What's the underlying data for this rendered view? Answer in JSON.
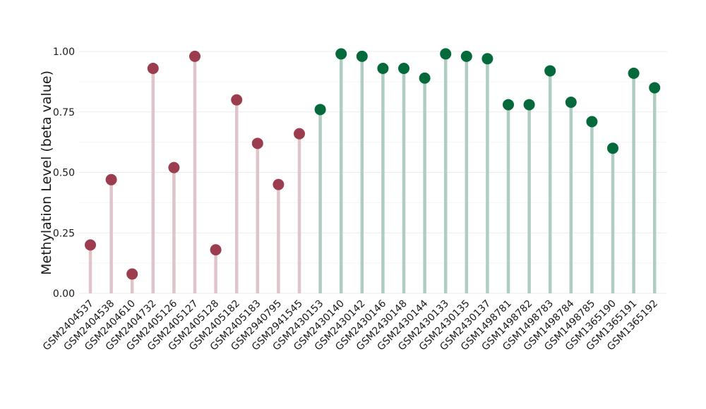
{
  "chart_data": {
    "type": "lollipop",
    "title": "",
    "xlabel": "",
    "ylabel": "Methylation Level (beta value)",
    "ylim": [
      0,
      1
    ],
    "yticks": [
      "0.00",
      "0.25",
      "0.50",
      "0.75",
      "1.00"
    ],
    "grid": true,
    "legend": "none",
    "colors": {
      "group_a_point": "#9b3d4e",
      "group_a_stem": "#dfc4ca",
      "group_b_point": "#046a3c",
      "group_b_stem": "#afcdc1"
    },
    "categories": [
      "GSM2404537",
      "GSM2404538",
      "GSM2404610",
      "GSM2404732",
      "GSM2405126",
      "GSM2405127",
      "GSM2405128",
      "GSM2405182",
      "GSM2405183",
      "GSM2940795",
      "GSM2941545",
      "GSM2430153",
      "GSM2430140",
      "GSM2430142",
      "GSM2430146",
      "GSM2430148",
      "GSM2430144",
      "GSM2430133",
      "GSM2430135",
      "GSM2430137",
      "GSM1498781",
      "GSM1498782",
      "GSM1498783",
      "GSM1498784",
      "GSM1498785",
      "GSM1365190",
      "GSM1365191",
      "GSM1365192"
    ],
    "values": [
      0.2,
      0.47,
      0.08,
      0.93,
      0.52,
      0.98,
      0.18,
      0.8,
      0.62,
      0.45,
      0.66,
      0.76,
      0.99,
      0.98,
      0.93,
      0.93,
      0.89,
      0.99,
      0.98,
      0.97,
      0.78,
      0.78,
      0.92,
      0.79,
      0.71,
      0.6,
      0.91,
      0.85
    ],
    "groups": [
      "a",
      "a",
      "a",
      "a",
      "a",
      "a",
      "a",
      "a",
      "a",
      "a",
      "a",
      "b",
      "b",
      "b",
      "b",
      "b",
      "b",
      "b",
      "b",
      "b",
      "b",
      "b",
      "b",
      "b",
      "b",
      "b",
      "b",
      "b"
    ]
  }
}
